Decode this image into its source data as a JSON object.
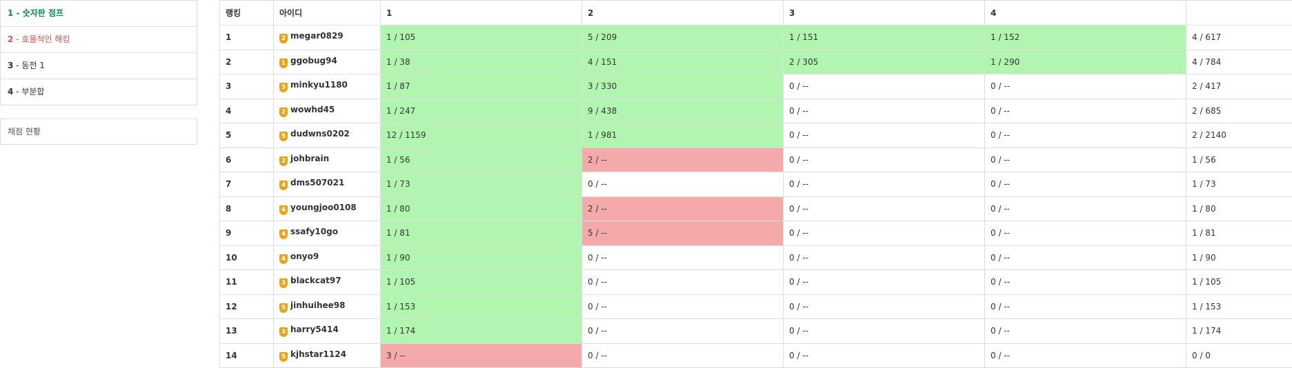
{
  "sidebar": {
    "problems": [
      {
        "num": "1",
        "title": "숫자판 점프",
        "state": "green"
      },
      {
        "num": "2",
        "title": "효율적인 해킹",
        "state": "red"
      },
      {
        "num": "3",
        "title": "동전 1",
        "state": "normal"
      },
      {
        "num": "4",
        "title": "부분합",
        "state": "normal"
      }
    ],
    "status_label": "채점 현황"
  },
  "scoreboard": {
    "headers": [
      "랭킹",
      "아이디",
      "1",
      "2",
      "3",
      "4",
      ""
    ],
    "rows": [
      {
        "rank": "1",
        "tier": "2",
        "user": "megar0829",
        "p": [
          "1 / 105",
          "5 / 209",
          "1 / 151",
          "1 / 152"
        ],
        "s": [
          "ac",
          "ac",
          "ac",
          "ac"
        ],
        "total": "4 / 617"
      },
      {
        "rank": "2",
        "tier": "1",
        "user": "ggobug94",
        "p": [
          "1 / 38",
          "4 / 151",
          "2 / 305",
          "1 / 290"
        ],
        "s": [
          "ac",
          "ac",
          "ac",
          "ac"
        ],
        "total": "4 / 784"
      },
      {
        "rank": "3",
        "tier": "3",
        "user": "minkyu1180",
        "p": [
          "1 / 87",
          "3 / 330",
          "0 / --",
          "0 / --"
        ],
        "s": [
          "ac",
          "ac",
          "",
          ""
        ],
        "total": "2 / 417"
      },
      {
        "rank": "4",
        "tier": "2",
        "user": "wowhd45",
        "p": [
          "1 / 247",
          "9 / 438",
          "0 / --",
          "0 / --"
        ],
        "s": [
          "ac",
          "ac",
          "",
          ""
        ],
        "total": "2 / 685"
      },
      {
        "rank": "5",
        "tier": "5",
        "user": "dudwns0202",
        "p": [
          "12 / 1159",
          "1 / 981",
          "0 / --",
          "0 / --"
        ],
        "s": [
          "ac",
          "ac",
          "",
          ""
        ],
        "total": "2 / 2140"
      },
      {
        "rank": "6",
        "tier": "2",
        "user": "johbrain",
        "p": [
          "1 / 56",
          "2 / --",
          "0 / --",
          "0 / --"
        ],
        "s": [
          "ac",
          "wa",
          "",
          ""
        ],
        "total": "1 / 56"
      },
      {
        "rank": "7",
        "tier": "4",
        "user": "dms507021",
        "p": [
          "1 / 73",
          "0 / --",
          "0 / --",
          "0 / --"
        ],
        "s": [
          "ac",
          "",
          "",
          ""
        ],
        "total": "1 / 73"
      },
      {
        "rank": "8",
        "tier": "4",
        "user": "youngjoo0108",
        "p": [
          "1 / 80",
          "2 / --",
          "0 / --",
          "0 / --"
        ],
        "s": [
          "ac",
          "wa",
          "",
          ""
        ],
        "total": "1 / 80"
      },
      {
        "rank": "9",
        "tier": "4",
        "user": "ssafy10go",
        "p": [
          "1 / 81",
          "5 / --",
          "0 / --",
          "0 / --"
        ],
        "s": [
          "ac",
          "wa",
          "",
          ""
        ],
        "total": "1 / 81"
      },
      {
        "rank": "10",
        "tier": "4",
        "user": "onyo9",
        "p": [
          "1 / 90",
          "0 / --",
          "0 / --",
          "0 / --"
        ],
        "s": [
          "ac",
          "",
          "",
          ""
        ],
        "total": "1 / 90"
      },
      {
        "rank": "11",
        "tier": "3",
        "user": "blackcat97",
        "p": [
          "1 / 105",
          "0 / --",
          "0 / --",
          "0 / --"
        ],
        "s": [
          "ac",
          "",
          "",
          ""
        ],
        "total": "1 / 105"
      },
      {
        "rank": "12",
        "tier": "5",
        "user": "jinhuihee98",
        "p": [
          "1 / 153",
          "0 / --",
          "0 / --",
          "0 / --"
        ],
        "s": [
          "ac",
          "",
          "",
          ""
        ],
        "total": "1 / 153"
      },
      {
        "rank": "13",
        "tier": "3",
        "user": "harry5414",
        "p": [
          "1 / 174",
          "0 / --",
          "0 / --",
          "0 / --"
        ],
        "s": [
          "ac",
          "",
          "",
          ""
        ],
        "total": "1 / 174"
      },
      {
        "rank": "14",
        "tier": "5",
        "user": "kjhstar1124",
        "p": [
          "3 / --",
          "0 / --",
          "0 / --",
          "0 / --"
        ],
        "s": [
          "wa",
          "",
          "",
          ""
        ],
        "total": "0 / 0"
      }
    ]
  },
  "colors": {
    "accepted": "#b1f5b1",
    "wrong": "#f4aaaa",
    "tier_badge": "#e8a317",
    "solved_text": "#0f8a56",
    "failed_text": "#d9534f"
  }
}
